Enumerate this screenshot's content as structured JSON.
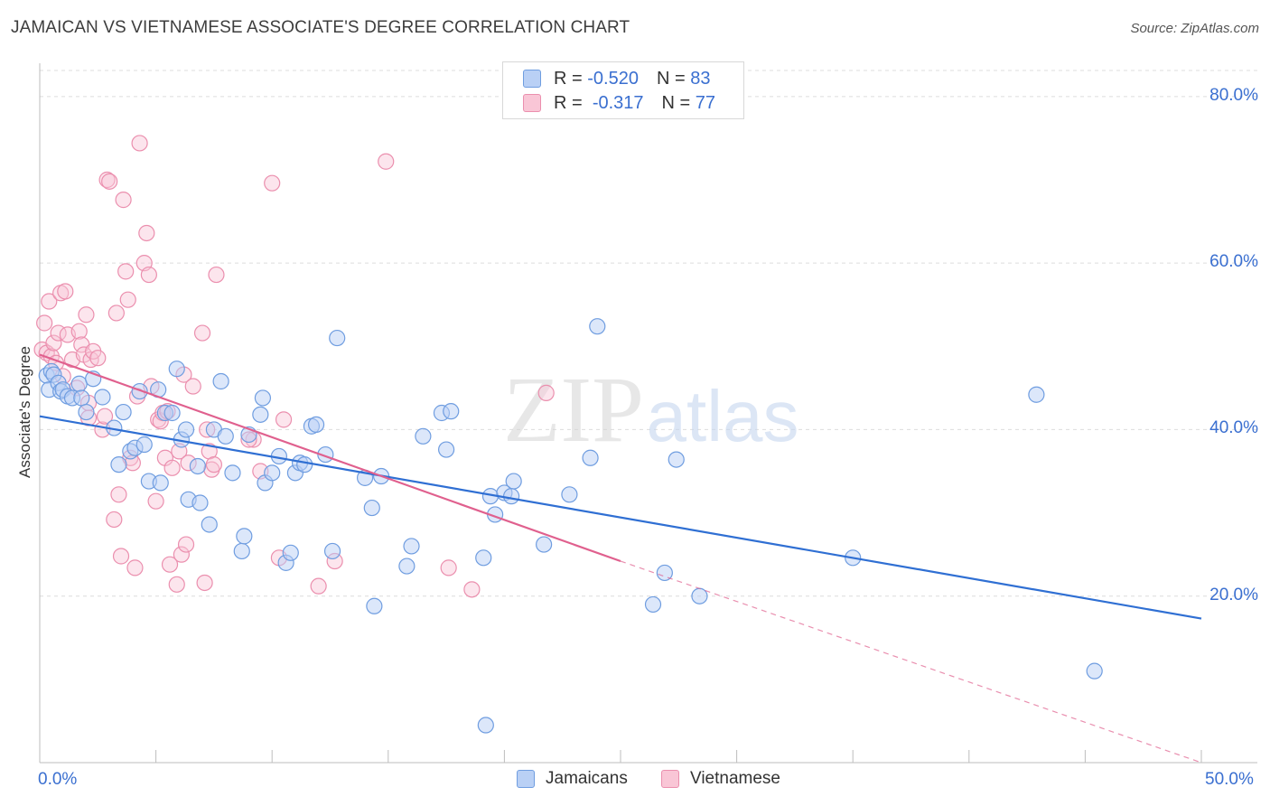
{
  "title": "JAMAICAN VS VIETNAMESE ASSOCIATE'S DEGREE CORRELATION CHART",
  "source": "Source: ZipAtlas.com",
  "watermark": {
    "zip": "ZIP",
    "atlas": "atlas"
  },
  "legend": {
    "rows": [
      {
        "r_label": "R =",
        "r_value": "-0.520",
        "n_label": "N =",
        "n_value": "83"
      },
      {
        "r_label": "R =",
        "r_value": "-0.317",
        "n_label": "N =",
        "n_value": "77"
      }
    ]
  },
  "colors": {
    "jamaican_fill": "#b9d0f5",
    "jamaican_stroke": "#6f9de0",
    "jamaican_line": "#2f6fd3",
    "vietnamese_fill": "#f9c6d6",
    "vietnamese_stroke": "#eb8fae",
    "vietnamese_line": "#e0608e",
    "axis_text": "#3a6fd0",
    "grid": "#dcdcdc"
  },
  "chart_data": {
    "type": "scatter",
    "title": "JAMAICAN VS VIETNAMESE ASSOCIATE'S DEGREE CORRELATION CHART",
    "xlabel": "",
    "ylabel": "Associate's Degree",
    "xlim": [
      0,
      50
    ],
    "ylim": [
      0,
      84
    ],
    "x_tick_labels": {
      "min": "0.0%",
      "max": "50.0%"
    },
    "y_ticks": [
      {
        "value": 20,
        "label": "20.0%"
      },
      {
        "value": 40,
        "label": "40.0%"
      },
      {
        "value": 60,
        "label": "60.0%"
      },
      {
        "value": 80,
        "label": "80.0%"
      }
    ],
    "grid": true,
    "legend_position": "bottom-center",
    "series": [
      {
        "name": "Jamaicans",
        "color": "#6f9de0",
        "trend": {
          "x": [
            0,
            50
          ],
          "y": [
            41.6,
            17.3
          ],
          "style": "solid"
        },
        "points": [
          [
            0.3,
            46.5
          ],
          [
            0.4,
            44.8
          ],
          [
            0.5,
            47
          ],
          [
            0.6,
            46.6
          ],
          [
            0.8,
            45.6
          ],
          [
            0.9,
            44.6
          ],
          [
            1.0,
            44.8
          ],
          [
            1.2,
            44.0
          ],
          [
            1.4,
            43.8
          ],
          [
            1.7,
            45.5
          ],
          [
            1.8,
            43.8
          ],
          [
            2.0,
            42.1
          ],
          [
            2.3,
            46.1
          ],
          [
            2.7,
            43.9
          ],
          [
            3.2,
            40.2
          ],
          [
            3.4,
            35.8
          ],
          [
            3.6,
            42.1
          ],
          [
            3.9,
            37.4
          ],
          [
            4.1,
            37.8
          ],
          [
            4.3,
            44.6
          ],
          [
            4.5,
            38.2
          ],
          [
            4.7,
            33.8
          ],
          [
            5.1,
            44.8
          ],
          [
            5.2,
            33.6
          ],
          [
            5.4,
            42.0
          ],
          [
            5.7,
            42.0
          ],
          [
            5.9,
            47.3
          ],
          [
            6.1,
            38.8
          ],
          [
            6.3,
            40.0
          ],
          [
            6.4,
            31.6
          ],
          [
            6.8,
            35.6
          ],
          [
            6.9,
            31.2
          ],
          [
            7.3,
            28.6
          ],
          [
            7.5,
            40.0
          ],
          [
            7.8,
            45.8
          ],
          [
            8.0,
            39.2
          ],
          [
            8.3,
            34.8
          ],
          [
            8.7,
            25.4
          ],
          [
            8.8,
            27.2
          ],
          [
            9.0,
            39.4
          ],
          [
            9.5,
            41.8
          ],
          [
            9.6,
            43.8
          ],
          [
            9.7,
            33.6
          ],
          [
            10.0,
            34.8
          ],
          [
            10.3,
            36.8
          ],
          [
            10.6,
            24.0
          ],
          [
            10.8,
            25.2
          ],
          [
            11.0,
            34.8
          ],
          [
            11.2,
            36.0
          ],
          [
            11.4,
            35.8
          ],
          [
            11.7,
            40.4
          ],
          [
            11.9,
            40.6
          ],
          [
            12.3,
            37.0
          ],
          [
            12.6,
            25.4
          ],
          [
            12.8,
            51.0
          ],
          [
            14.0,
            34.2
          ],
          [
            14.3,
            30.6
          ],
          [
            14.4,
            18.8
          ],
          [
            14.7,
            34.4
          ],
          [
            15.8,
            23.6
          ],
          [
            16.0,
            26.0
          ],
          [
            16.5,
            39.2
          ],
          [
            17.3,
            42.0
          ],
          [
            17.5,
            37.6
          ],
          [
            17.7,
            42.2
          ],
          [
            19.1,
            24.6
          ],
          [
            19.2,
            4.5
          ],
          [
            19.4,
            32.0
          ],
          [
            19.6,
            29.8
          ],
          [
            20.0,
            32.4
          ],
          [
            20.3,
            32.0
          ],
          [
            20.4,
            33.8
          ],
          [
            21.7,
            26.2
          ],
          [
            22.8,
            32.2
          ],
          [
            23.7,
            36.6
          ],
          [
            24.0,
            52.4
          ],
          [
            26.4,
            19.0
          ],
          [
            26.9,
            22.8
          ],
          [
            27.4,
            36.4
          ],
          [
            28.4,
            20.0
          ],
          [
            35.0,
            24.6
          ],
          [
            42.9,
            44.2
          ],
          [
            45.4,
            11.0
          ]
        ]
      },
      {
        "name": "Vietnamese",
        "color": "#eb8fae",
        "trend": {
          "x": [
            0,
            25
          ],
          "y": [
            49.0,
            24.2
          ],
          "style": "solid",
          "extended_x": [
            25,
            50
          ],
          "extended_y": [
            24.2,
            0
          ],
          "extended_style": "dashed"
        },
        "points": [
          [
            0.1,
            49.6
          ],
          [
            0.2,
            52.8
          ],
          [
            0.3,
            49.2
          ],
          [
            0.4,
            55.4
          ],
          [
            0.5,
            48.8
          ],
          [
            0.6,
            50.4
          ],
          [
            0.7,
            48.0
          ],
          [
            0.8,
            51.6
          ],
          [
            0.9,
            56.4
          ],
          [
            1.0,
            46.4
          ],
          [
            1.1,
            56.6
          ],
          [
            1.2,
            51.4
          ],
          [
            1.4,
            48.4
          ],
          [
            1.6,
            45.0
          ],
          [
            1.7,
            51.8
          ],
          [
            1.8,
            50.2
          ],
          [
            1.9,
            49.0
          ],
          [
            2.0,
            53.8
          ],
          [
            2.1,
            43.2
          ],
          [
            2.2,
            48.4
          ],
          [
            2.3,
            49.4
          ],
          [
            2.5,
            48.6
          ],
          [
            2.7,
            40.0
          ],
          [
            2.8,
            41.6
          ],
          [
            2.9,
            70.0
          ],
          [
            3.0,
            69.8
          ],
          [
            3.2,
            29.2
          ],
          [
            3.3,
            54.0
          ],
          [
            3.4,
            32.2
          ],
          [
            3.5,
            24.8
          ],
          [
            3.6,
            67.6
          ],
          [
            3.7,
            59.0
          ],
          [
            3.8,
            55.6
          ],
          [
            3.9,
            36.6
          ],
          [
            4.0,
            36.0
          ],
          [
            4.1,
            23.4
          ],
          [
            4.2,
            44.0
          ],
          [
            4.3,
            74.4
          ],
          [
            4.5,
            60.0
          ],
          [
            4.6,
            63.6
          ],
          [
            4.7,
            58.6
          ],
          [
            4.8,
            45.2
          ],
          [
            5.0,
            31.4
          ],
          [
            5.1,
            41.2
          ],
          [
            5.2,
            41.0
          ],
          [
            5.3,
            42.0
          ],
          [
            5.4,
            36.6
          ],
          [
            5.6,
            23.8
          ],
          [
            5.7,
            35.4
          ],
          [
            5.9,
            21.4
          ],
          [
            6.0,
            37.4
          ],
          [
            6.1,
            25.0
          ],
          [
            6.2,
            46.6
          ],
          [
            6.3,
            26.2
          ],
          [
            6.4,
            36.0
          ],
          [
            6.6,
            45.2
          ],
          [
            7.0,
            51.6
          ],
          [
            7.1,
            21.6
          ],
          [
            7.2,
            40.0
          ],
          [
            7.3,
            37.4
          ],
          [
            7.4,
            35.2
          ],
          [
            7.5,
            35.8
          ],
          [
            7.6,
            58.6
          ],
          [
            9.2,
            38.8
          ],
          [
            9.5,
            35.0
          ],
          [
            10.0,
            69.6
          ],
          [
            10.3,
            24.6
          ],
          [
            10.5,
            41.2
          ],
          [
            12.0,
            21.2
          ],
          [
            12.7,
            24.2
          ],
          [
            14.9,
            72.2
          ],
          [
            17.6,
            23.4
          ],
          [
            18.6,
            20.8
          ],
          [
            21.8,
            44.4
          ],
          [
            9.0,
            38.8
          ],
          [
            5.5,
            42.2
          ],
          [
            2.1,
            41.4
          ]
        ]
      }
    ]
  },
  "bottom_legend": {
    "jamaicans": "Jamaicans",
    "vietnamese": "Vietnamese"
  },
  "axis_text": {
    "x_min": "0.0%",
    "x_max": "50.0%",
    "y_label": "Associate's Degree"
  }
}
